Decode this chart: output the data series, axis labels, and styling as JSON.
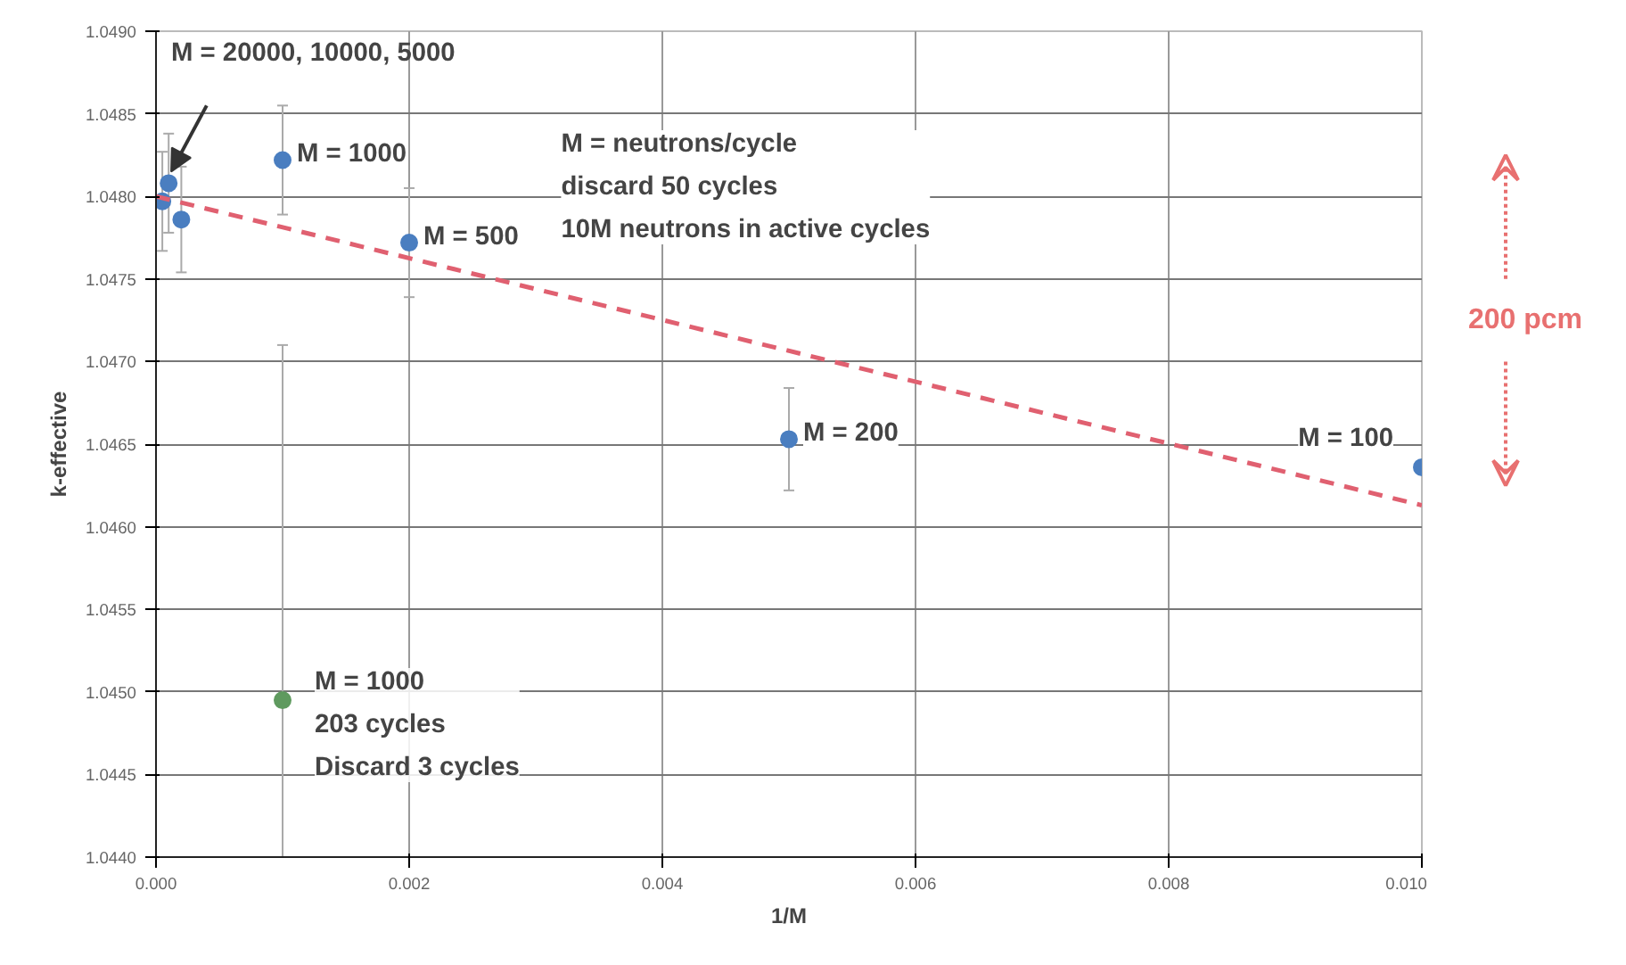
{
  "chart_data": {
    "type": "scatter",
    "xlabel": "1/M",
    "ylabel": "k-effective",
    "xlim": [
      0,
      0.01
    ],
    "ylim": [
      1.044,
      1.049
    ],
    "xticks": [
      {
        "value": 0,
        "label": "0.000"
      },
      {
        "value": 0.002,
        "label": "0.002"
      },
      {
        "value": 0.004,
        "label": "0.004"
      },
      {
        "value": 0.006,
        "label": "0.006"
      },
      {
        "value": 0.008,
        "label": "0.008"
      },
      {
        "value": 0.01,
        "label": "0.010"
      }
    ],
    "yticks": [
      {
        "value": 1.044,
        "label": "1.0440"
      },
      {
        "value": 1.0445,
        "label": "1.0445"
      },
      {
        "value": 1.045,
        "label": "1.0450"
      },
      {
        "value": 1.0455,
        "label": "1.0455"
      },
      {
        "value": 1.046,
        "label": "1.0460"
      },
      {
        "value": 1.0465,
        "label": "1.0465"
      },
      {
        "value": 1.047,
        "label": "1.0470"
      },
      {
        "value": 1.0475,
        "label": "1.0475"
      },
      {
        "value": 1.048,
        "label": "1.0480"
      },
      {
        "value": 1.0485,
        "label": "1.0485"
      },
      {
        "value": 1.049,
        "label": "1.0490"
      }
    ],
    "grid": true,
    "marker": "circle",
    "series": [
      {
        "type": "scatter",
        "color": "#4a7ec0",
        "x": [
          5e-05,
          0.0001,
          0.0002,
          0.001,
          0.002,
          0.005,
          0.01
        ],
        "values": [
          1.04797,
          1.04808,
          1.04786,
          1.04822,
          1.04772,
          1.04653,
          1.04636
        ],
        "errors": [
          0.0003,
          0.0003,
          0.00032,
          0.00033,
          0.00033,
          0.00031,
          null
        ]
      },
      {
        "type": "scatter",
        "color": "#5f9a5f",
        "x": [
          0.001
        ],
        "values": [
          1.04495
        ],
        "errors": [
          [
            1.044,
            1.0471
          ]
        ]
      },
      {
        "type": "line",
        "color": "#e06070",
        "line_style": "dashed",
        "marker": "none",
        "x": [
          0,
          0.01
        ],
        "values": [
          1.048,
          1.04613
        ]
      }
    ],
    "annotations": [
      "M = 20000, 10000, 5000",
      {
        "text": "M = 1000",
        "x": 0.001,
        "y": 1.04822
      },
      {
        "text": "M = 500",
        "x": 0.002,
        "y": 1.04772
      },
      {
        "text": "M = 200",
        "x": 0.005,
        "y": 1.04653
      },
      {
        "text": "M = 100",
        "x": 0.01,
        "y": 1.04636
      },
      {
        "text": "M = 1000\n203 cycles\nDiscard 3 cycles",
        "x": 0.001,
        "y": 1.04495
      },
      "M = neutrons/cycle\ndiscard 50 cycles\n10M neutrons in active cycles",
      "200 pcm"
    ]
  }
}
